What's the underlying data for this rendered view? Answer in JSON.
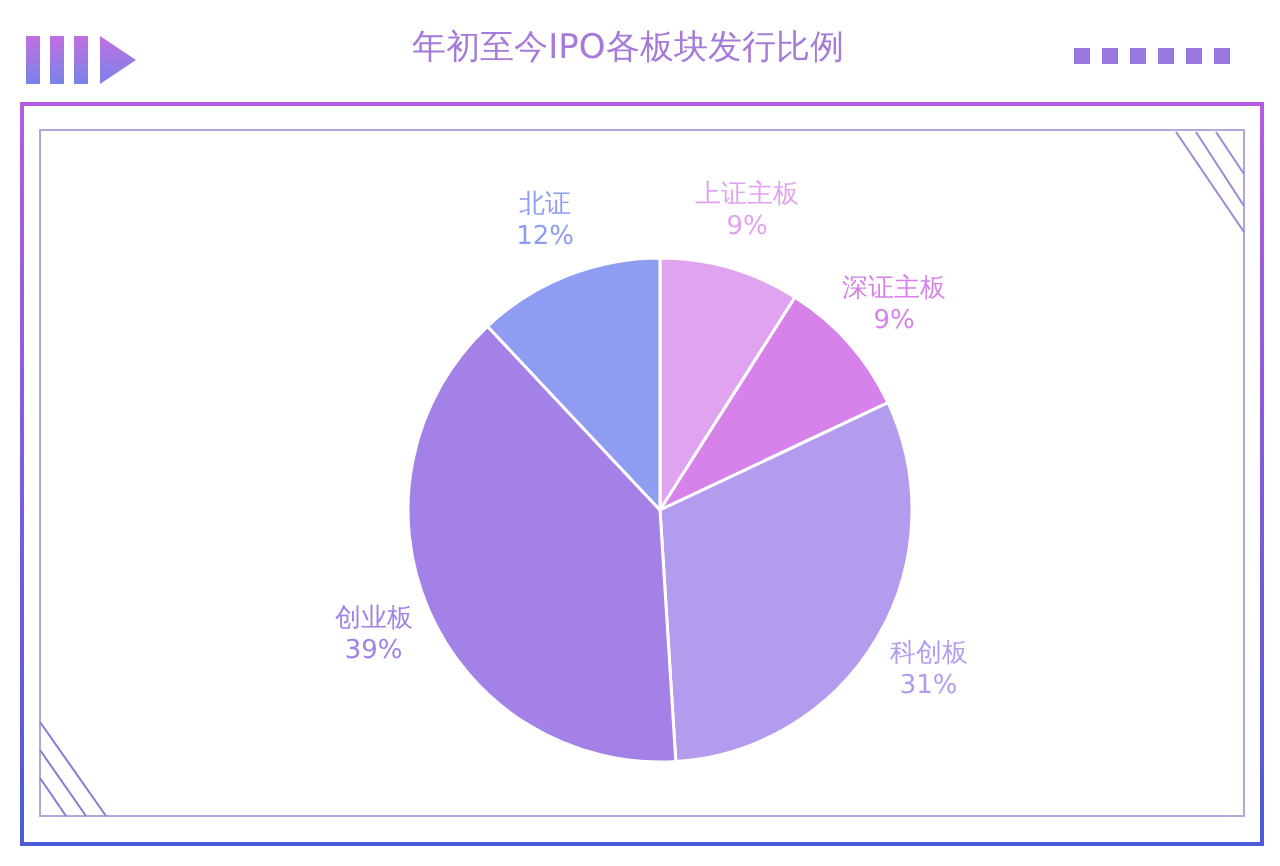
{
  "chart_data": {
    "type": "pie",
    "title": "年初至今IPO各板块发行比例",
    "categories": [
      "上证主板",
      "深证主板",
      "科创板",
      "创业板",
      "北证"
    ],
    "values": [
      9,
      9,
      31,
      39,
      12
    ],
    "colors": [
      "#dfa3f0",
      "#d782ea",
      "#b39cee",
      "#a381e7",
      "#8e9cf2"
    ],
    "value_labels": [
      "9%",
      "9%",
      "31%",
      "39%",
      "12%"
    ]
  }
}
